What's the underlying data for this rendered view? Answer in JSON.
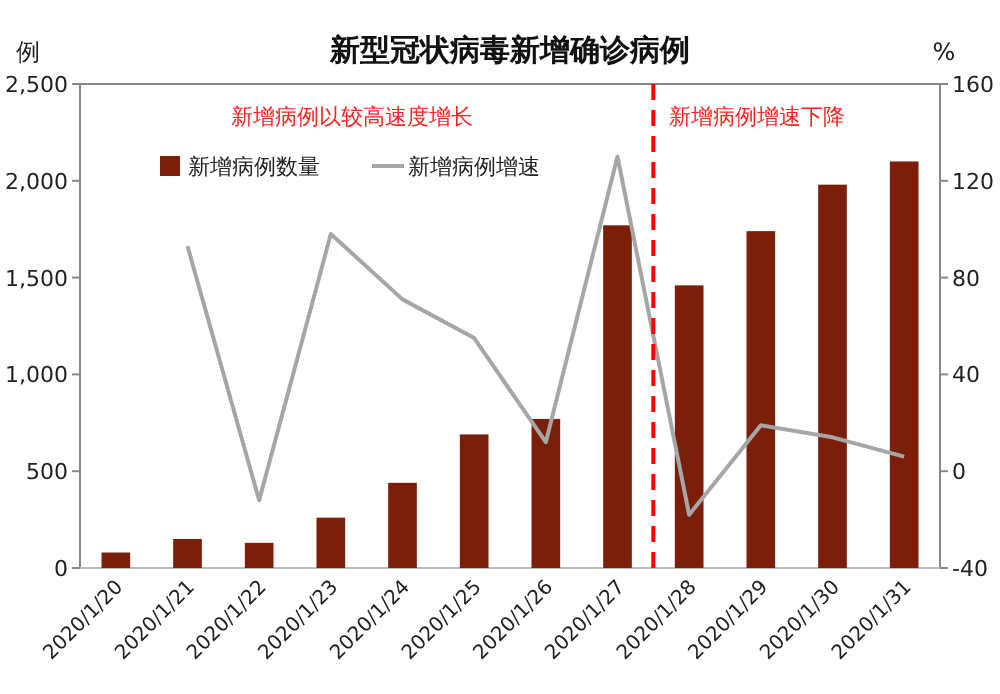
{
  "chart_data": {
    "type": "bar",
    "title": "新型冠状病毒新增确诊病例",
    "ylabel": "例",
    "y2label": "%",
    "categories": [
      "2020/1/20",
      "2020/1/21",
      "2020/1/22",
      "2020/1/23",
      "2020/1/24",
      "2020/1/25",
      "2020/1/26",
      "2020/1/27",
      "2020/1/28",
      "2020/1/29",
      "2020/1/30",
      "2020/1/31"
    ],
    "series": [
      {
        "name": "新增病例数量",
        "color": "#7b1f0a",
        "values": [
          80,
          150,
          130,
          260,
          440,
          690,
          770,
          1770,
          1460,
          1740,
          1980,
          2100
        ]
      },
      {
        "name": "新增病例增速",
        "type": "line",
        "axis": "y2",
        "color": "#a6a6a6",
        "values": [
          null,
          93,
          -12,
          98,
          71,
          55,
          12,
          130,
          -18,
          19,
          14,
          6
        ]
      }
    ],
    "ylim": [
      0,
      2500
    ],
    "yticks": [
      0,
      {
        "value": 500,
        "label": "500"
      },
      {
        "value": 1000,
        "label": "1,000"
      },
      {
        "value": 1500,
        "label": "1,500"
      },
      {
        "value": 2000,
        "label": "2,000"
      },
      {
        "value": 2500,
        "label": "2,500"
      }
    ],
    "y2lim": [
      -40,
      160
    ],
    "y2ticks": [
      -40,
      0,
      40,
      80,
      120,
      160
    ],
    "annotations": [
      "新增病例以较高速度增长",
      "新增病例增速下降"
    ],
    "legend": "top left",
    "grid": false
  }
}
